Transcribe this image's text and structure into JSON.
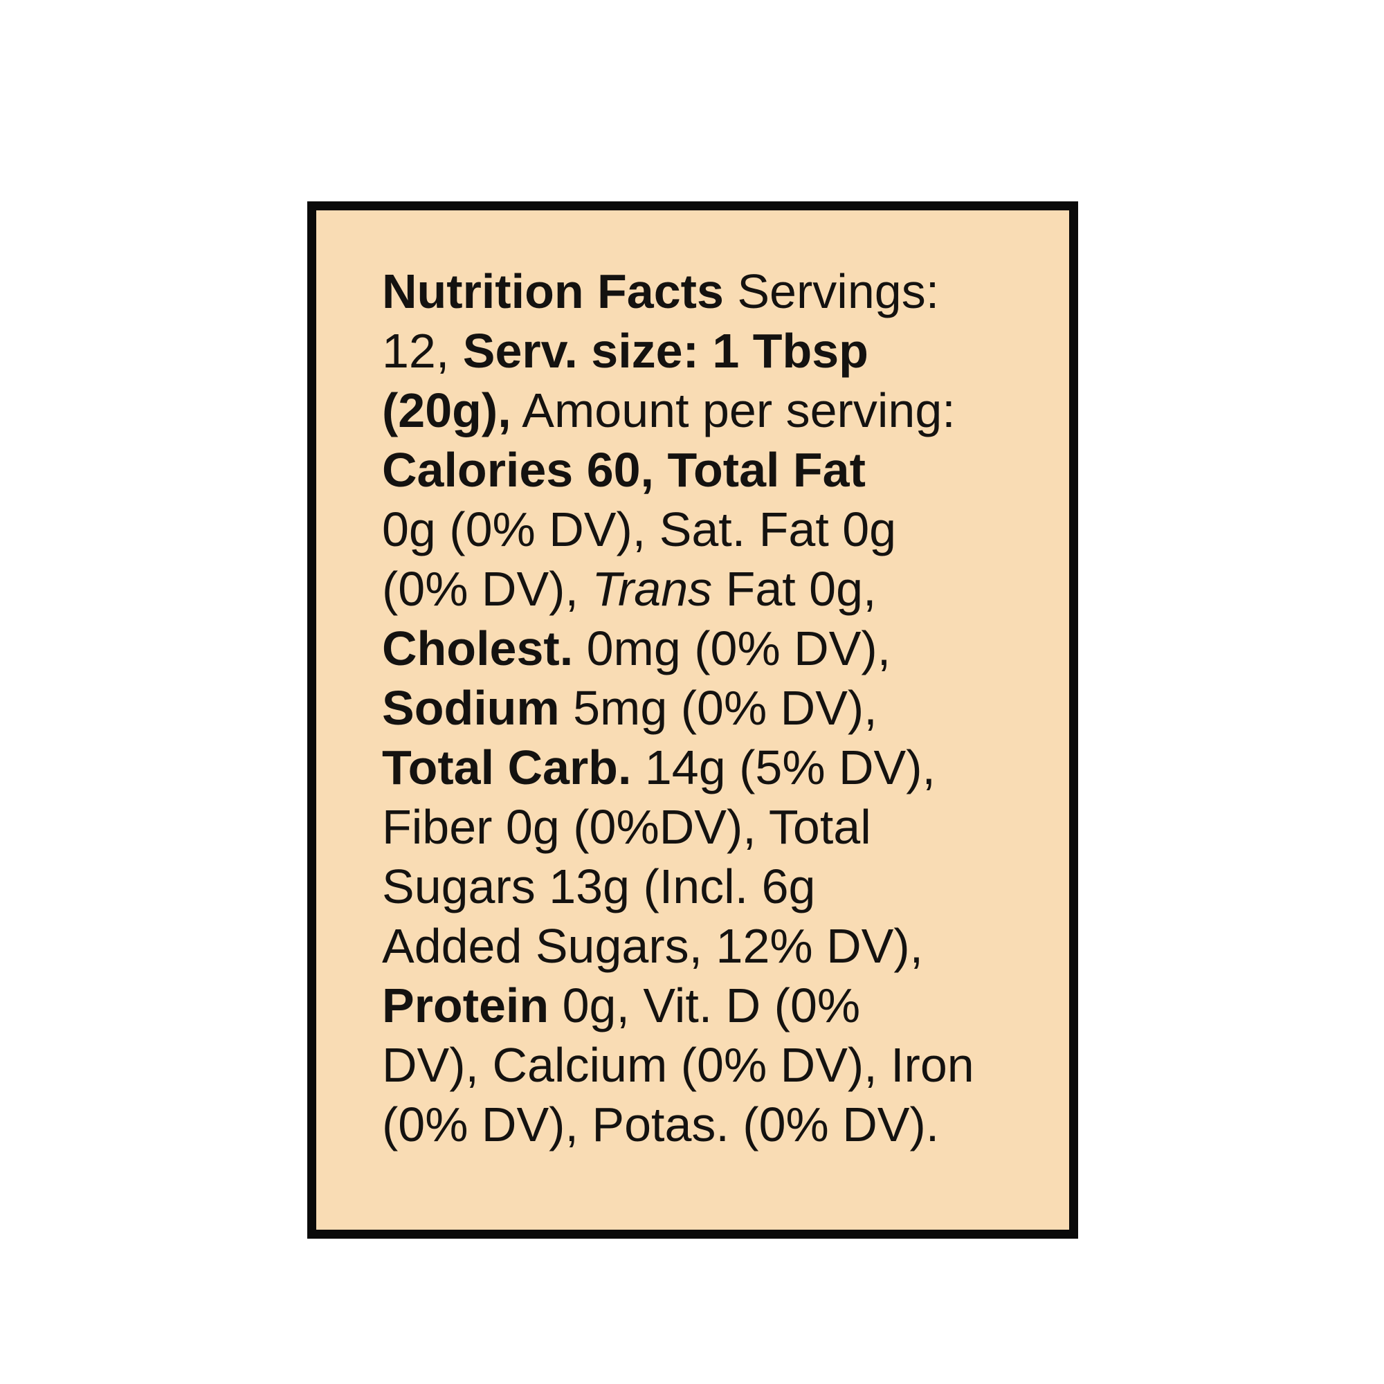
{
  "label": {
    "background": "#f9dcb4",
    "border": "#0a0a0a",
    "lines": [
      [
        {
          "t": "Nutrition Facts",
          "s": "b"
        },
        {
          "t": " Servings:",
          "s": "n"
        }
      ],
      [
        {
          "t": "12, ",
          "s": "n"
        },
        {
          "t": "Serv. size:  1 Tbsp",
          "s": "b"
        }
      ],
      [
        {
          "t": "(20g),",
          "s": "b"
        },
        {
          "t": " Amount per serving:",
          "s": "n"
        }
      ],
      [
        {
          "t": "Calories 60, Total Fat",
          "s": "b"
        }
      ],
      [
        {
          "t": "0g (0% DV), Sat. Fat 0g",
          "s": "n"
        }
      ],
      [
        {
          "t": "(0% DV), ",
          "s": "n"
        },
        {
          "t": "Trans",
          "s": "i"
        },
        {
          "t": " Fat 0g,",
          "s": "n"
        }
      ],
      [
        {
          "t": "Cholest.",
          "s": "b"
        },
        {
          "t": " 0mg (0% DV),",
          "s": "n"
        }
      ],
      [
        {
          "t": "Sodium",
          "s": "b"
        },
        {
          "t": " 5mg (0% DV),",
          "s": "n"
        }
      ],
      [
        {
          "t": "Total Carb.",
          "s": "b"
        },
        {
          "t": " 14g (5% DV),",
          "s": "n"
        }
      ],
      [
        {
          "t": "Fiber 0g (0%DV), Total",
          "s": "n"
        }
      ],
      [
        {
          "t": "Sugars 13g (Incl. 6g",
          "s": "n"
        }
      ],
      [
        {
          "t": "Added Sugars, 12% DV),",
          "s": "n"
        }
      ],
      [
        {
          "t": "Protein",
          "s": "b"
        },
        {
          "t": " 0g, Vit. D (0%",
          "s": "n"
        }
      ],
      [
        {
          "t": "DV), Calcium (0% DV), Iron",
          "s": "n"
        }
      ],
      [
        {
          "t": "(0% DV), Potas. (0% DV).",
          "s": "n"
        }
      ]
    ]
  }
}
